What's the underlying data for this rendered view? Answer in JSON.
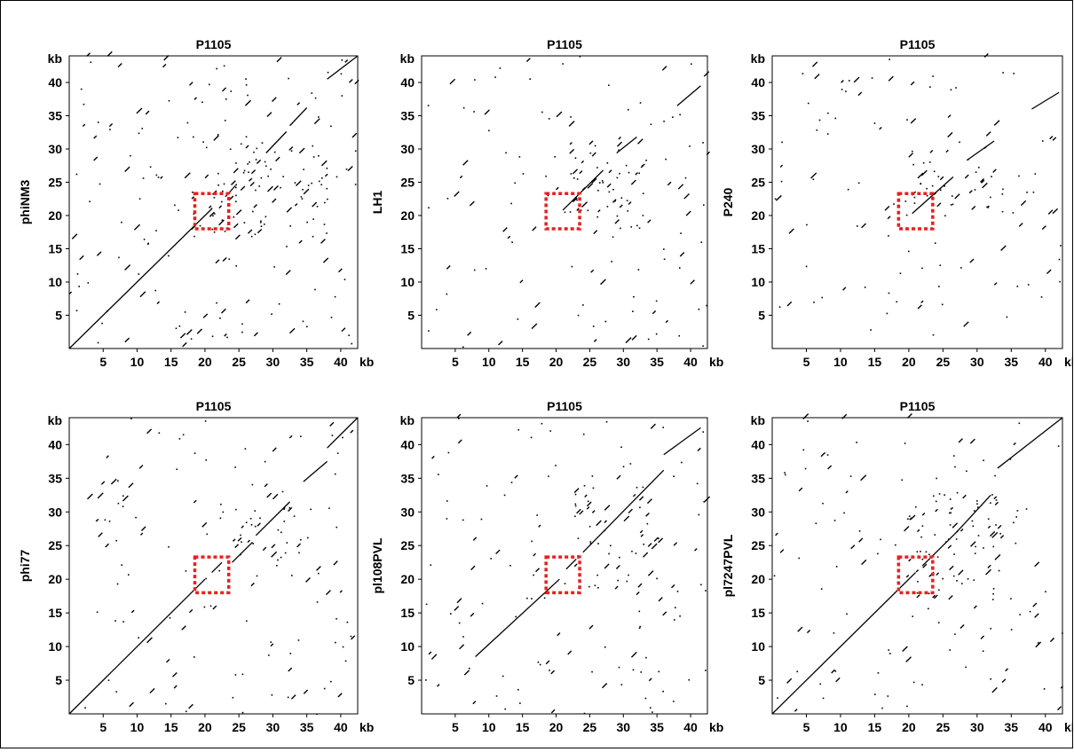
{
  "colors": {
    "dots": "#000000",
    "axes": "#000000",
    "highlight_box": "#e8201f"
  },
  "chart_data": [
    {
      "type": "scatter",
      "title": "P1105",
      "ylabel": "phiNM3",
      "xlabel": "",
      "axis_unit": "kb",
      "xticks": [
        5,
        10,
        15,
        20,
        25,
        30,
        35,
        40
      ],
      "yticks": [
        5,
        10,
        15,
        20,
        25,
        30,
        35,
        40
      ],
      "xlim": [
        0,
        42.5
      ],
      "ylim": [
        0,
        44
      ],
      "grid": false,
      "highlight_box": {
        "x": [
          18.5,
          23.5
        ],
        "y": [
          18,
          23.3
        ]
      },
      "diagonal_segments": [
        [
          0,
          0,
          21,
          21
        ],
        [
          23,
          22.8,
          24.5,
          24.5
        ],
        [
          29,
          29.4,
          32,
          32.6
        ],
        [
          32.5,
          33.5,
          35,
          36.2
        ],
        [
          38,
          40.5,
          42.5,
          44
        ]
      ],
      "noise": {
        "count": 260,
        "seed": 11,
        "cluster_x": [
          18,
          38
        ],
        "cluster_y": [
          17,
          32
        ],
        "cluster_share": 0.4
      }
    },
    {
      "type": "scatter",
      "title": "P1105",
      "ylabel": "LH1",
      "xlabel": "",
      "axis_unit": "kb",
      "xticks": [
        5,
        10,
        15,
        20,
        25,
        30,
        35,
        40
      ],
      "yticks": [
        5,
        10,
        15,
        20,
        25,
        30,
        35,
        40
      ],
      "xlim": [
        0,
        42.5
      ],
      "ylim": [
        0,
        44
      ],
      "grid": false,
      "highlight_box": {
        "x": [
          18.5,
          23.5
        ],
        "y": [
          18,
          23.3
        ]
      },
      "diagonal_segments": [
        [
          21,
          20.8,
          27,
          26.8
        ],
        [
          29,
          29.4,
          32,
          31.8
        ],
        [
          38,
          36.5,
          41.5,
          39.5
        ]
      ],
      "noise": {
        "count": 170,
        "seed": 22,
        "cluster_x": [
          22,
          33
        ],
        "cluster_y": [
          18,
          31
        ],
        "cluster_share": 0.3
      }
    },
    {
      "type": "scatter",
      "title": "P1105",
      "ylabel": "P240",
      "xlabel": "",
      "axis_unit": "kb",
      "xticks": [
        5,
        10,
        15,
        20,
        25,
        30,
        35,
        40
      ],
      "yticks": [
        5,
        10,
        15,
        20,
        25,
        30,
        35,
        40
      ],
      "xlim": [
        0,
        42.5
      ],
      "ylim": [
        0,
        44
      ],
      "grid": false,
      "highlight_box": {
        "x": [
          18.5,
          23.5
        ],
        "y": [
          18,
          23.3
        ]
      },
      "diagonal_segments": [
        [
          20.5,
          20.3,
          26.5,
          25.8
        ],
        [
          28.5,
          28.3,
          32.5,
          31.2
        ],
        [
          38,
          36,
          42,
          38.5
        ]
      ],
      "noise": {
        "count": 150,
        "seed": 33,
        "cluster_x": [
          19,
          32
        ],
        "cluster_y": [
          20,
          30
        ],
        "cluster_share": 0.25
      }
    },
    {
      "type": "scatter",
      "title": "P1105",
      "ylabel": "phi77",
      "xlabel": "",
      "axis_unit": "kb",
      "xticks": [
        5,
        10,
        15,
        20,
        25,
        30,
        35,
        40
      ],
      "yticks": [
        5,
        10,
        15,
        20,
        25,
        30,
        35,
        40
      ],
      "xlim": [
        0,
        42.5
      ],
      "ylim": [
        0,
        44
      ],
      "grid": false,
      "highlight_box": {
        "x": [
          18.5,
          23.5
        ],
        "y": [
          18,
          23.3
        ]
      },
      "diagonal_segments": [
        [
          0,
          0,
          20,
          20
        ],
        [
          21,
          21,
          22.5,
          22.5
        ],
        [
          24,
          22.5,
          27,
          25.5
        ],
        [
          27.5,
          26.5,
          32.5,
          31.5
        ],
        [
          34.5,
          34.5,
          38,
          37.5
        ],
        [
          38,
          39.5,
          42.5,
          44
        ]
      ],
      "noise": {
        "count": 160,
        "seed": 44,
        "cluster_x": [
          24,
          34
        ],
        "cluster_y": [
          22,
          32
        ],
        "cluster_share": 0.25
      }
    },
    {
      "type": "scatter",
      "title": "P1105",
      "ylabel": "pl108PVL",
      "xlabel": "",
      "axis_unit": "kb",
      "xticks": [
        5,
        10,
        15,
        20,
        25,
        30,
        35,
        40
      ],
      "yticks": [
        5,
        10,
        15,
        20,
        25,
        30,
        35,
        40
      ],
      "xlim": [
        0,
        42.5
      ],
      "ylim": [
        0,
        44
      ],
      "grid": false,
      "highlight_box": {
        "x": [
          18.5,
          23.5
        ],
        "y": [
          18,
          23.3
        ]
      },
      "diagonal_segments": [
        [
          8,
          8.5,
          20.5,
          20
        ],
        [
          21.5,
          21.5,
          23,
          23
        ],
        [
          24,
          24,
          36,
          36.2
        ],
        [
          36,
          38.5,
          41.5,
          42.5
        ]
      ],
      "noise": {
        "count": 180,
        "seed": 55,
        "cluster_x": [
          21,
          36
        ],
        "cluster_y": [
          18,
          34
        ],
        "cluster_share": 0.3
      }
    },
    {
      "type": "scatter",
      "title": "P1105",
      "ylabel": "pl7247PVL",
      "xlabel": "",
      "axis_unit": "kb",
      "xticks": [
        5,
        10,
        15,
        20,
        25,
        30,
        35,
        40
      ],
      "yticks": [
        5,
        10,
        15,
        20,
        25,
        30,
        35,
        40
      ],
      "xlim": [
        0,
        42.5
      ],
      "ylim": [
        0,
        44
      ],
      "grid": false,
      "highlight_box": {
        "x": [
          18.5,
          23.5
        ],
        "y": [
          18,
          23.3
        ]
      },
      "diagonal_segments": [
        [
          0,
          0,
          21,
          21
        ],
        [
          22,
          22,
          27,
          27
        ],
        [
          27,
          27,
          32,
          32.5
        ],
        [
          33,
          36.5,
          42.5,
          44
        ]
      ],
      "noise": {
        "count": 200,
        "seed": 66,
        "cluster_x": [
          20,
          34
        ],
        "cluster_y": [
          17,
          33
        ],
        "cluster_share": 0.35
      }
    }
  ]
}
